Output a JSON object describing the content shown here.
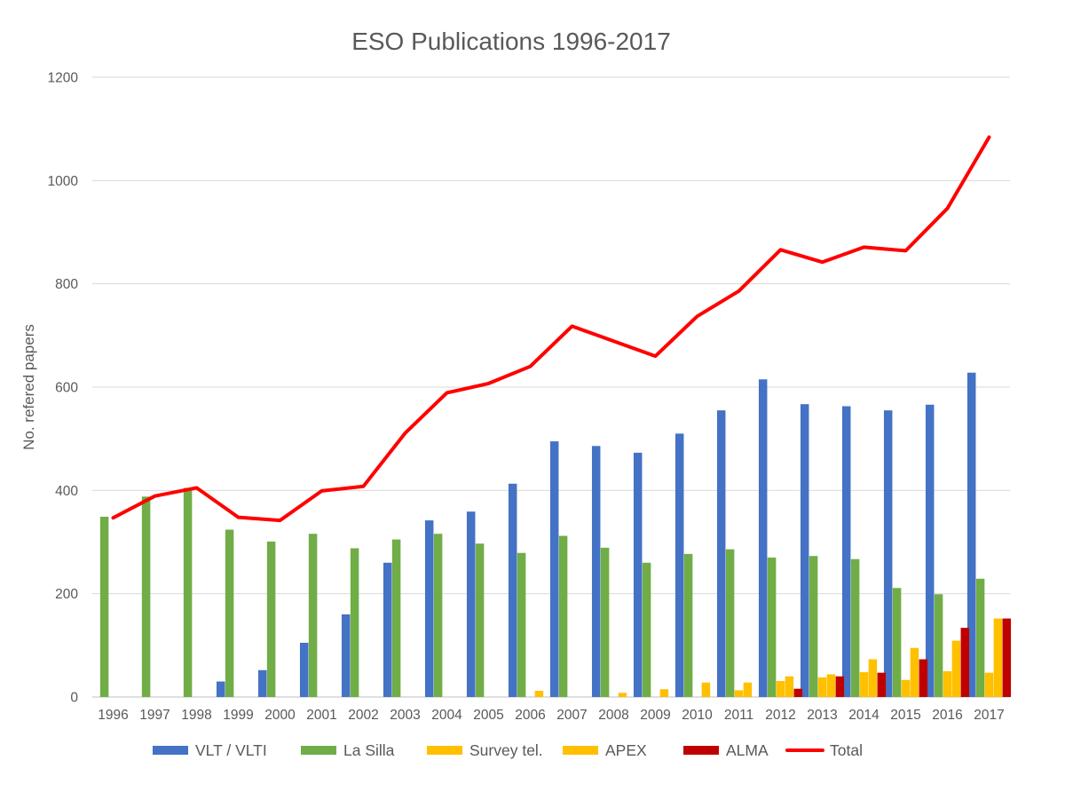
{
  "chart_data": {
    "type": "bar",
    "title": "ESO Publications 1996-2017",
    "xlabel": "",
    "ylabel": "No. refered papers",
    "ylim": [
      0,
      1200
    ],
    "yticks": [
      0,
      200,
      400,
      600,
      800,
      1000,
      1200
    ],
    "grid": true,
    "legend_position": "bottom",
    "categories": [
      "1996",
      "1997",
      "1998",
      "1999",
      "2000",
      "2001",
      "2002",
      "2003",
      "2004",
      "2005",
      "2006",
      "2007",
      "2008",
      "2009",
      "2010",
      "2011",
      "2012",
      "2013",
      "2014",
      "2015",
      "2016",
      "2017"
    ],
    "series": [
      {
        "name": "VLT / VLTI",
        "type": "bar",
        "color": "#4472C4",
        "values": [
          0,
          0,
          0,
          30,
          52,
          105,
          160,
          260,
          342,
          359,
          413,
          495,
          486,
          473,
          510,
          555,
          615,
          567,
          563,
          555,
          566,
          628
        ]
      },
      {
        "name": "La Silla",
        "type": "bar",
        "color": "#70AD47",
        "values": [
          349,
          388,
          405,
          324,
          301,
          316,
          288,
          305,
          316,
          297,
          279,
          312,
          289,
          260,
          277,
          286,
          270,
          273,
          267,
          211,
          199,
          229
        ]
      },
      {
        "name": "Survey tel.",
        "type": "bar",
        "color": "#FFC000",
        "values": [
          0,
          0,
          0,
          0,
          0,
          0,
          0,
          0,
          0,
          0,
          0,
          0,
          0,
          0,
          0,
          13,
          31,
          38,
          48,
          33,
          50,
          47
        ]
      },
      {
        "name": "APEX",
        "type": "bar",
        "color": "#FFC000",
        "values": [
          0,
          0,
          0,
          0,
          0,
          0,
          0,
          0,
          0,
          0,
          12,
          0,
          8,
          15,
          28,
          28,
          40,
          44,
          73,
          95,
          109,
          152
        ]
      },
      {
        "name": "ALMA",
        "type": "bar",
        "color": "#C00000",
        "values": [
          0,
          0,
          0,
          0,
          0,
          0,
          0,
          0,
          0,
          0,
          0,
          0,
          0,
          0,
          0,
          0,
          16,
          40,
          47,
          73,
          134,
          152
        ]
      },
      {
        "name": "Total",
        "type": "line",
        "color": "#FF0000",
        "values": [
          347,
          389,
          405,
          348,
          342,
          399,
          408,
          511,
          589,
          607,
          640,
          718,
          689,
          660,
          737,
          786,
          866,
          842,
          871,
          864,
          946,
          1084
        ]
      }
    ]
  }
}
